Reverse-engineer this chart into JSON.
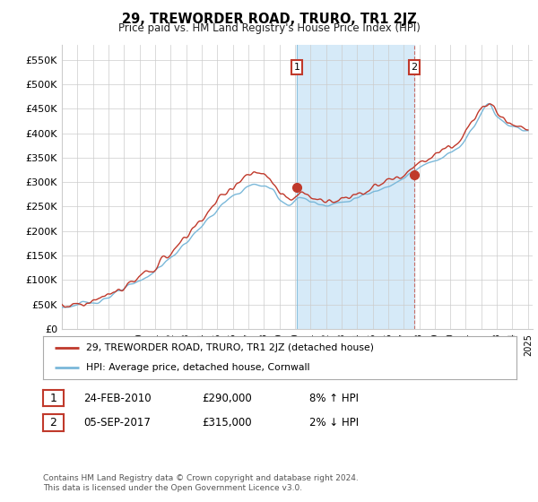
{
  "title": "29, TREWORDER ROAD, TRURO, TR1 2JZ",
  "subtitle": "Price paid vs. HM Land Registry's House Price Index (HPI)",
  "ylabel_ticks": [
    "£0",
    "£50K",
    "£100K",
    "£150K",
    "£200K",
    "£250K",
    "£300K",
    "£350K",
    "£400K",
    "£450K",
    "£500K",
    "£550K"
  ],
  "ytick_vals": [
    0,
    50000,
    100000,
    150000,
    200000,
    250000,
    300000,
    350000,
    400000,
    450000,
    500000,
    550000
  ],
  "ylim": [
    0,
    580000
  ],
  "hpi_color": "#7ab8d9",
  "hpi_fill_color": "#d6eaf8",
  "price_color": "#c0392b",
  "sale1_date": 2010.13,
  "sale1_price": 290000,
  "sale2_date": 2017.68,
  "sale2_price": 315000,
  "legend_label1": "29, TREWORDER ROAD, TRURO, TR1 2JZ (detached house)",
  "legend_label2": "HPI: Average price, detached house, Cornwall",
  "annotation1_label": "1",
  "annotation2_label": "2",
  "table_row1": [
    "1",
    "24-FEB-2010",
    "£290,000",
    "8% ↑ HPI"
  ],
  "table_row2": [
    "2",
    "05-SEP-2017",
    "£315,000",
    "2% ↓ HPI"
  ],
  "footer": "Contains HM Land Registry data © Crown copyright and database right 2024.\nThis data is licensed under the Open Government Licence v3.0.",
  "background_color": "#ffffff",
  "grid_color": "#cccccc"
}
